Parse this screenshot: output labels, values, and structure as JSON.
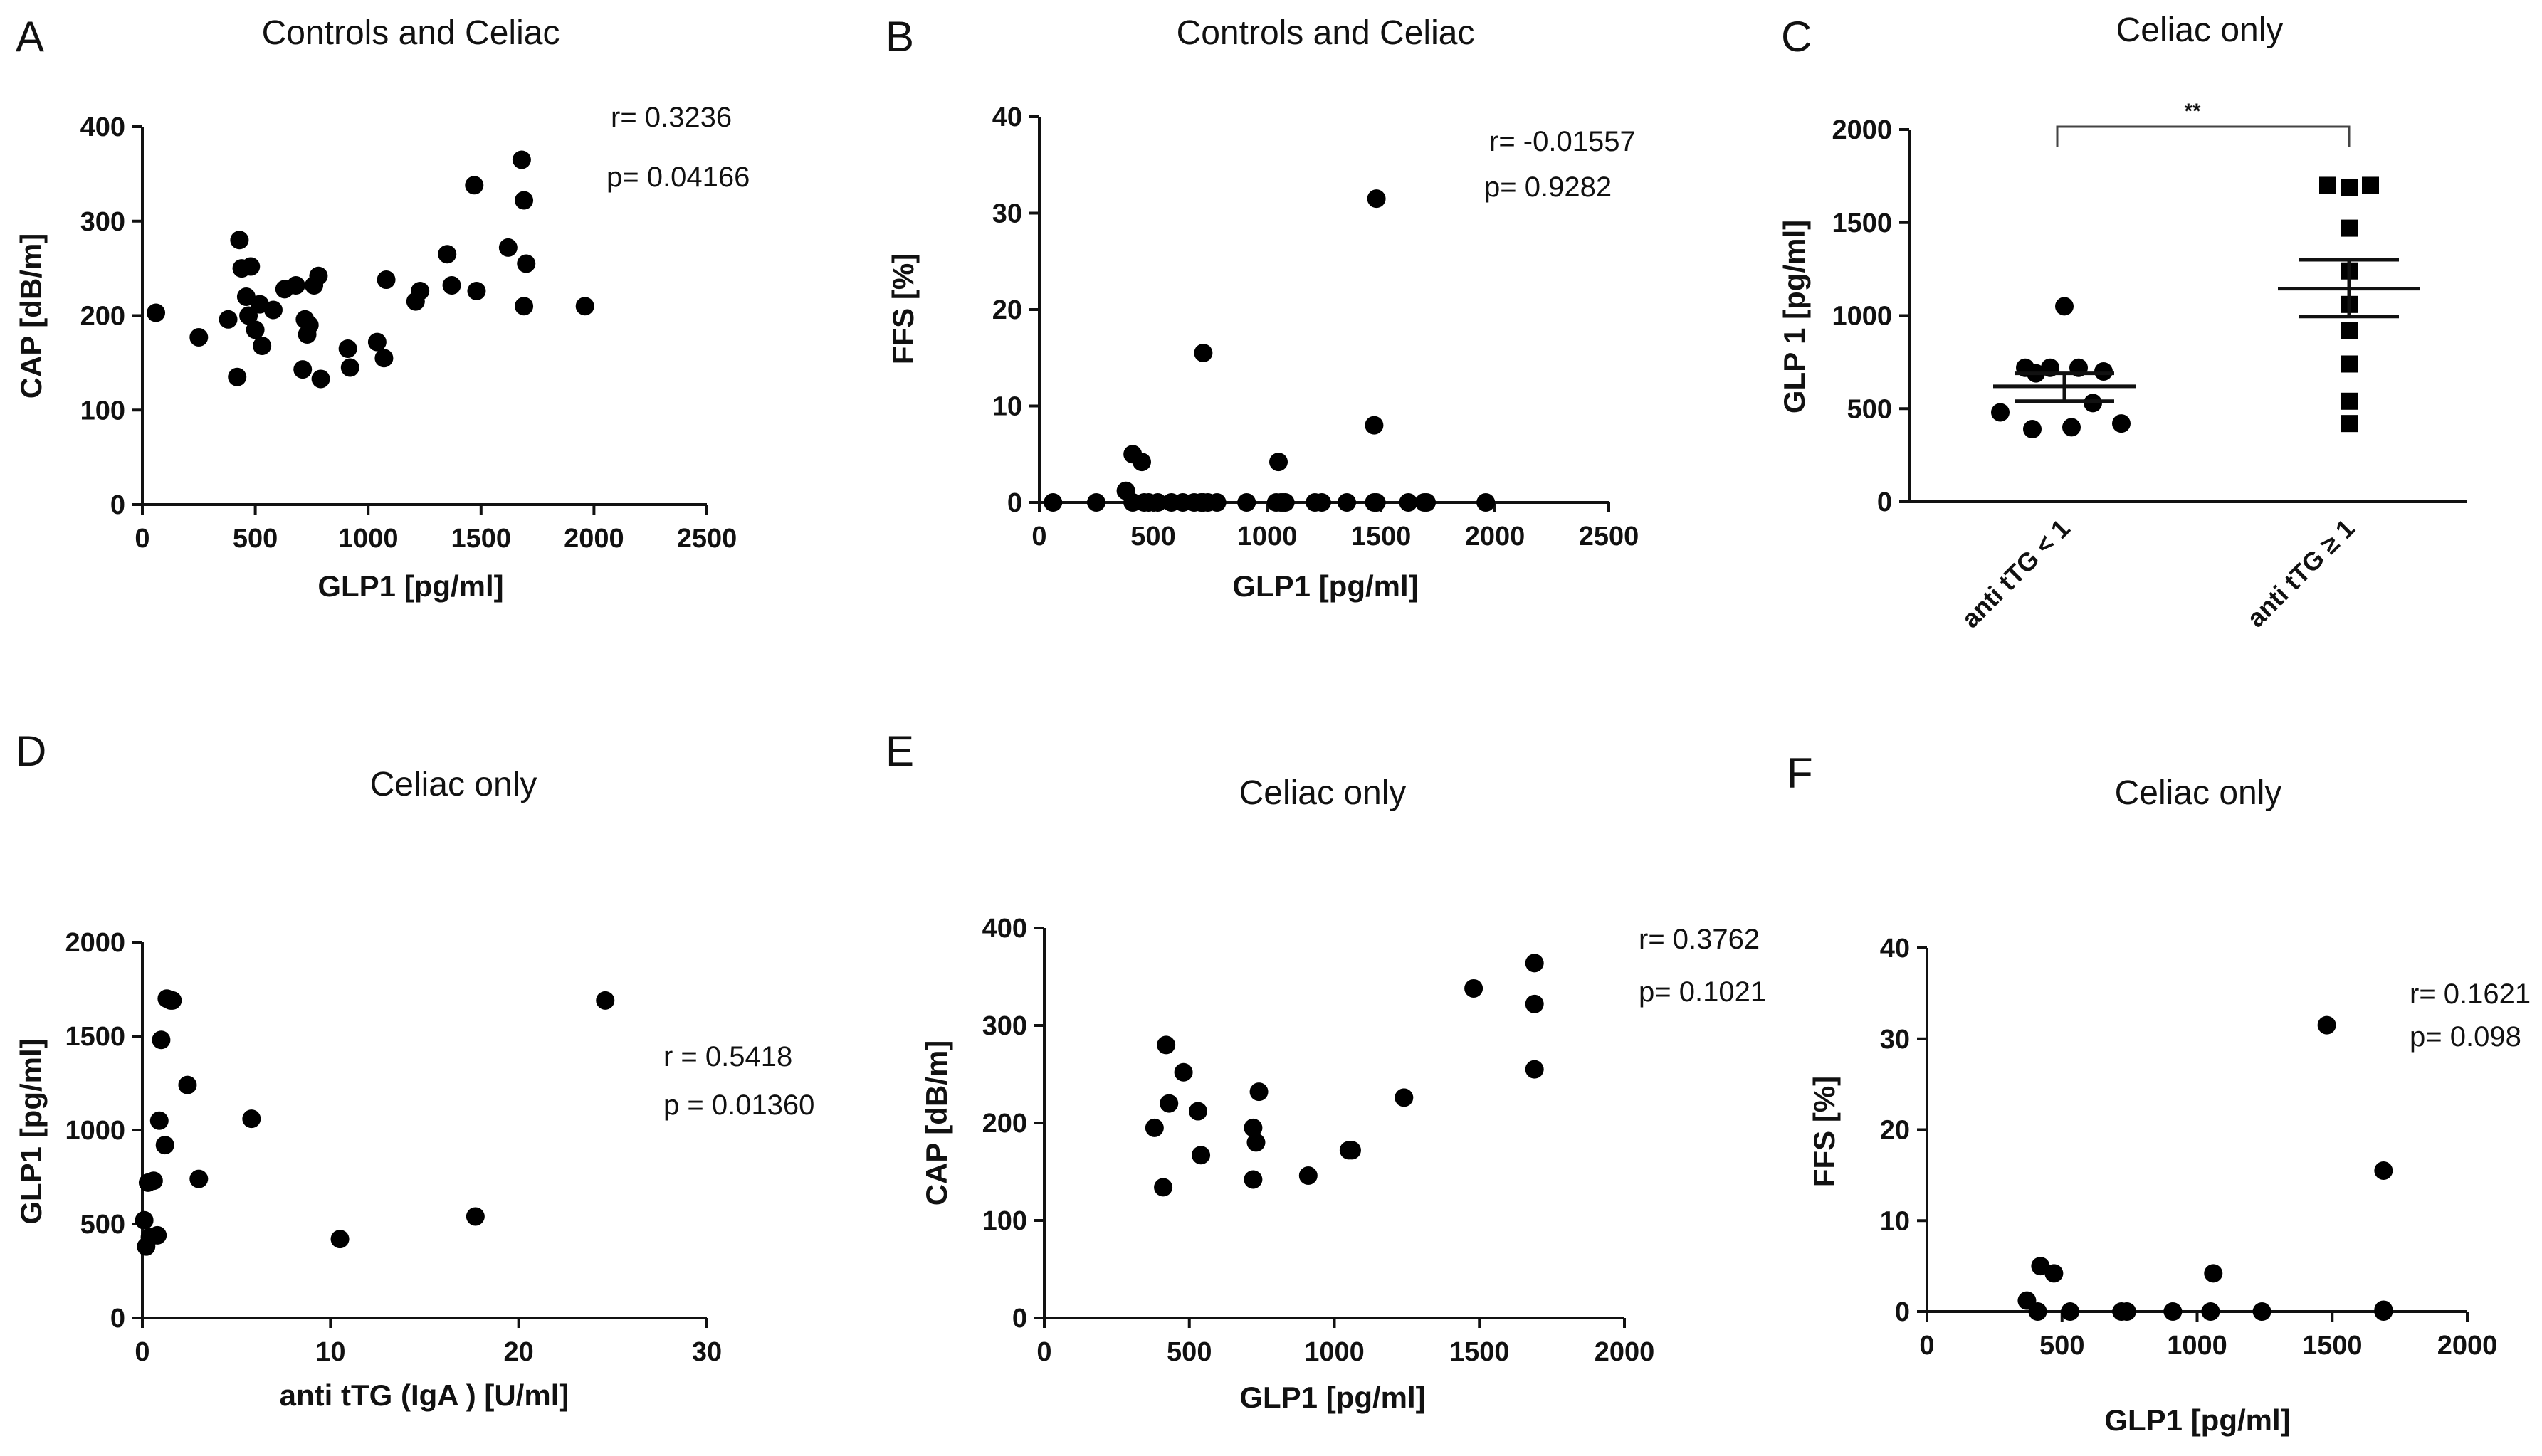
{
  "panels": [
    {
      "letter": "A",
      "title": "Controls and Celiac",
      "xlabel": "GLP1 [pg/ml]",
      "ylabel": "CAP [dB/m]",
      "stats": [
        "r= 0.3236",
        "p= 0.04166"
      ]
    },
    {
      "letter": "B",
      "title": "Controls and Celiac",
      "xlabel": "GLP1 [pg/ml]",
      "ylabel": "FFS [%]",
      "stats": [
        "r= -0.01557",
        "p= 0.9282"
      ]
    },
    {
      "letter": "C",
      "title": "Celiac only",
      "xlabel": "",
      "ylabel": "GLP 1 [pg/ml]",
      "stats": [],
      "significance": "**"
    },
    {
      "letter": "D",
      "title": "Celiac only",
      "xlabel": "anti tTG (IgA ) [U/ml]",
      "ylabel": "GLP1 [pg/ml]",
      "stats": [
        "r = 0.5418",
        "p = 0.01360"
      ]
    },
    {
      "letter": "E",
      "title": "Celiac only",
      "xlabel": "GLP1 [pg/ml]",
      "ylabel": "CAP [dB/m]",
      "stats": [
        "r= 0.3762",
        "p= 0.1021"
      ]
    },
    {
      "letter": "F",
      "title": "Celiac only",
      "xlabel": "GLP1 [pg/ml]",
      "ylabel": "FFS [%]",
      "stats": [
        "r= 0.1621",
        "p= 0.098"
      ]
    }
  ],
  "chart_data": [
    {
      "type": "scatter",
      "panel": "A",
      "title": "Controls and Celiac",
      "xlabel": "GLP1 [pg/ml]",
      "ylabel": "CAP [dB/m]",
      "xlim": [
        0,
        2500
      ],
      "ylim": [
        0,
        400
      ],
      "xticks": [
        0,
        500,
        1000,
        1500,
        2000,
        2500
      ],
      "yticks": [
        0,
        100,
        200,
        300,
        400
      ],
      "x": [
        60,
        250,
        380,
        420,
        430,
        440,
        460,
        470,
        480,
        500,
        520,
        530,
        580,
        630,
        680,
        710,
        720,
        730,
        740,
        760,
        780,
        790,
        910,
        920,
        1040,
        1070,
        1080,
        1210,
        1230,
        1350,
        1370,
        1470,
        1480,
        1620,
        1680,
        1690,
        1700,
        1690,
        1960
      ],
      "y": [
        203,
        177,
        196,
        135,
        280,
        250,
        220,
        200,
        252,
        185,
        212,
        168,
        206,
        228,
        232,
        143,
        196,
        180,
        190,
        232,
        242,
        133,
        165,
        145,
        172,
        155,
        238,
        215,
        226,
        265,
        232,
        338,
        226,
        272,
        365,
        322,
        255,
        210,
        210
      ],
      "annotations": [
        "r= 0.3236",
        "p= 0.04166"
      ]
    },
    {
      "type": "scatter",
      "panel": "B",
      "title": "Controls and Celiac",
      "xlabel": "GLP1 [pg/ml]",
      "ylabel": "FFS [%]",
      "xlim": [
        0,
        2500
      ],
      "ylim": [
        0,
        40
      ],
      "xticks": [
        0,
        500,
        1000,
        1500,
        2000,
        2500
      ],
      "yticks": [
        0,
        10,
        20,
        30,
        40
      ],
      "x": [
        60,
        250,
        380,
        410,
        460,
        480,
        520,
        580,
        630,
        680,
        710,
        720,
        740,
        780,
        910,
        1040,
        1060,
        1070,
        1080,
        1210,
        1240,
        1350,
        1470,
        1480,
        1620,
        1690,
        1700,
        1960,
        720,
        410,
        450,
        1050,
        1470,
        1480
      ],
      "y": [
        0,
        0,
        1.2,
        0,
        0,
        0,
        0,
        0,
        0,
        0,
        0,
        0,
        0,
        0,
        0,
        0,
        0,
        0,
        0,
        0,
        0,
        0,
        0,
        0,
        0,
        0,
        0,
        0,
        15.5,
        5,
        4.2,
        4.2,
        8,
        31.5
      ],
      "annotations": [
        "r= -0.01557",
        "p= 0.9282"
      ]
    },
    {
      "type": "scatter",
      "panel": "C",
      "title": "Celiac only",
      "ylabel": "GLP 1 [pg/ml]",
      "categories": [
        "anti tTG < 1",
        "anti tTG ≥ 1"
      ],
      "ylim": [
        0,
        2000
      ],
      "yticks": [
        0,
        500,
        1000,
        1500,
        2000
      ],
      "series": [
        {
          "category": "anti tTG < 1",
          "values": [
            1050,
            720,
            720,
            720,
            700,
            690,
            530,
            480,
            420,
            400,
            390
          ],
          "mean": 620,
          "sem_low": 540,
          "sem_high": 690
        },
        {
          "category": "anti tTG ≥ 1",
          "values": [
            1700,
            1700,
            1690,
            1470,
            1240,
            1060,
            920,
            740,
            540,
            420
          ],
          "mean": 1145,
          "sem_low": 995,
          "sem_high": 1300
        }
      ],
      "significance": "**"
    },
    {
      "type": "scatter",
      "panel": "D",
      "title": "Celiac only",
      "xlabel": "anti tTG (IgA ) [U/ml]",
      "ylabel": "GLP1 [pg/ml]",
      "xlim": [
        0,
        30
      ],
      "ylim": [
        0,
        2000
      ],
      "xticks": [
        0,
        10,
        20,
        30
      ],
      "yticks": [
        0,
        500,
        1000,
        1500,
        2000
      ],
      "x": [
        0.1,
        0.2,
        0.3,
        0.4,
        0.6,
        0.8,
        0.9,
        1.0,
        1.2,
        1.3,
        1.5,
        1.6,
        2.4,
        3.0,
        5.8,
        10.5,
        17.7,
        24.6
      ],
      "y": [
        520,
        380,
        720,
        430,
        730,
        440,
        1050,
        1480,
        920,
        1700,
        1690,
        1690,
        1240,
        740,
        1060,
        420,
        540,
        1690
      ],
      "annotations": [
        "r = 0.5418",
        "p = 0.01360"
      ]
    },
    {
      "type": "scatter",
      "panel": "E",
      "title": "Celiac only",
      "xlabel": "GLP1 [pg/ml]",
      "ylabel": "CAP [dB/m]",
      "xlim": [
        0,
        2000
      ],
      "ylim": [
        0,
        400
      ],
      "xticks": [
        0,
        500,
        1000,
        1500,
        2000
      ],
      "yticks": [
        0,
        100,
        200,
        300,
        400
      ],
      "x": [
        380,
        410,
        420,
        430,
        480,
        530,
        540,
        720,
        720,
        730,
        740,
        910,
        1050,
        1060,
        1240,
        1480,
        1690,
        1690,
        1690
      ],
      "y": [
        195,
        134,
        280,
        220,
        252,
        212,
        167,
        142,
        195,
        180,
        232,
        146,
        172,
        172,
        226,
        338,
        364,
        322,
        255
      ],
      "annotations": [
        "r= 0.3762",
        "p= 0.1021"
      ]
    },
    {
      "type": "scatter",
      "panel": "F",
      "title": "Celiac only",
      "xlabel": "GLP1 [pg/ml]",
      "ylabel": "FFS [%]",
      "xlim": [
        0,
        2000
      ],
      "ylim": [
        0,
        40
      ],
      "xticks": [
        0,
        500,
        1000,
        1500,
        2000
      ],
      "yticks": [
        0,
        10,
        20,
        30,
        40
      ],
      "x": [
        370,
        410,
        420,
        470,
        530,
        720,
        740,
        910,
        1050,
        1060,
        1240,
        1480,
        1690,
        1690,
        1690
      ],
      "y": [
        1.2,
        0,
        5,
        4.2,
        0,
        0,
        0,
        0,
        0,
        4.2,
        0,
        31.5,
        15.5,
        0.2,
        0
      ],
      "annotations": [
        "r= 0.1621",
        "p= 0.098"
      ]
    }
  ]
}
